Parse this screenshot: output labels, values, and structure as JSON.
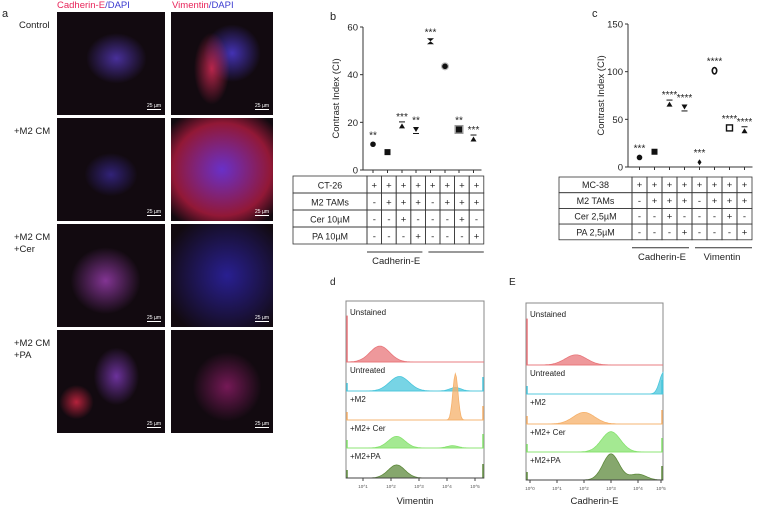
{
  "panel_a": {
    "label": "a",
    "col_headers": [
      {
        "marker": "Cadherin-E",
        "sep": "/",
        "stain": "DAPI"
      },
      {
        "marker": "Vimentin",
        "sep": "/",
        "stain": "DAPI"
      }
    ],
    "rows": [
      {
        "label_lines": [
          "Control"
        ]
      },
      {
        "label_lines": [
          "+M2 CM"
        ]
      },
      {
        "label_lines": [
          "+M2 CM",
          "+Cer"
        ]
      },
      {
        "label_lines": [
          "+M2 CM",
          "+PA"
        ]
      }
    ],
    "scale_bar": "25 µm",
    "colors": {
      "marker": "#e8245a",
      "dapi": "#3a3ad0"
    }
  },
  "chart_data": [
    {
      "panel": "b",
      "type": "scatter",
      "ylabel": "Contrast Index (CI)",
      "ylim": [
        0,
        60
      ],
      "yticks": [
        0,
        20,
        40,
        60
      ],
      "values": [
        10.8,
        7.5,
        18.5,
        17,
        54,
        43.5,
        17,
        13
      ],
      "significance": [
        "**",
        "",
        "***",
        "**",
        "***",
        "",
        "**",
        "***"
      ],
      "markers": [
        "circle",
        "square",
        "triangle",
        "triangle-down",
        "hourglass",
        "circle-gray",
        "square-gray",
        "triangle"
      ],
      "table": {
        "rows": [
          {
            "label": "CT-26",
            "cells": [
              "+",
              "+",
              "+",
              "+",
              "+",
              "+",
              "+",
              "+"
            ]
          },
          {
            "label": "M2 TAMs",
            "cells": [
              "-",
              "+",
              "+",
              "+",
              "-",
              "+",
              "+",
              "+"
            ]
          },
          {
            "label": "Cer 10µM",
            "cells": [
              "-",
              "-",
              "+",
              "-",
              "-",
              "-",
              "+",
              "-"
            ]
          },
          {
            "label": "PA 10µM",
            "cells": [
              "-",
              "-",
              "-",
              "+",
              "-",
              "-",
              "-",
              "+"
            ]
          }
        ]
      },
      "groups": [
        "Cadherin-E",
        ""
      ]
    },
    {
      "panel": "c",
      "type": "scatter",
      "ylabel": "Contrast Index (CI)",
      "ylim": [
        0,
        150
      ],
      "yticks": [
        0,
        50,
        100,
        150
      ],
      "values": [
        10,
        16,
        66,
        63,
        5,
        101,
        41,
        38
      ],
      "significance": [
        "***",
        "",
        "****",
        "****",
        "***",
        "****",
        "****",
        "****"
      ],
      "markers": [
        "circle",
        "square",
        "triangle",
        "triangle-down",
        "diamond",
        "circle-open",
        "square-open",
        "triangle"
      ],
      "table": {
        "rows": [
          {
            "label": "MC-38",
            "cells": [
              "+",
              "+",
              "+",
              "+",
              "+",
              "+",
              "+",
              "+"
            ]
          },
          {
            "label": "M2 TAMs",
            "cells": [
              "-",
              "+",
              "+",
              "+",
              "-",
              "+",
              "+",
              "+"
            ]
          },
          {
            "label": "Cer 2,5µM",
            "cells": [
              "-",
              "-",
              "+",
              "-",
              "-",
              "-",
              "+",
              "-"
            ]
          },
          {
            "label": "PA 2,5µM",
            "cells": [
              "-",
              "-",
              "-",
              "+",
              "-",
              "-",
              "-",
              "+"
            ]
          }
        ]
      },
      "groups": [
        "Cadherin-E",
        "Vimentin"
      ]
    },
    {
      "panel": "d",
      "type": "area",
      "xlabel": "Vimentin",
      "xscale": "log",
      "xticks": [
        "10^1",
        "10^2",
        "10^3",
        "10^4",
        "10^5"
      ],
      "series": [
        {
          "name": "Unstained",
          "color": "#e8767a",
          "peaks": [
            {
              "log10": 1.6,
              "rel": 0.55,
              "sd": 0.35
            }
          ]
        },
        {
          "name": "Untreated",
          "color": "#4ac6dc",
          "peaks": [
            {
              "log10": 2.3,
              "rel": 0.5,
              "sd": 0.35
            },
            {
              "log10": 4.3,
              "rel": 0.12,
              "sd": 0.2
            }
          ]
        },
        {
          "name": "+M2",
          "color": "#f5b06a",
          "peaks": [
            {
              "log10": 4.3,
              "rel": 1.6,
              "sd": 0.09
            }
          ]
        },
        {
          "name": "+M2+ Cer",
          "color": "#86e26e",
          "peaks": [
            {
              "log10": 2.2,
              "rel": 0.4,
              "sd": 0.3
            },
            {
              "log10": 4.2,
              "rel": 0.08,
              "sd": 0.2
            }
          ]
        },
        {
          "name": "+M2+PA",
          "color": "#5e8a3c",
          "peaks": [
            {
              "log10": 2.2,
              "rel": 0.45,
              "sd": 0.3
            }
          ]
        }
      ]
    },
    {
      "panel": "E",
      "type": "area",
      "xlabel": "Cadherin-E",
      "xscale": "log",
      "xticks": [
        "10^0",
        "10^1",
        "10^2",
        "10^3",
        "10^4",
        "10^5"
      ],
      "series": [
        {
          "name": "Unstained",
          "color": "#e8767a",
          "peaks": [
            {
              "log10": 1.7,
              "rel": 0.35,
              "sd": 0.4
            }
          ]
        },
        {
          "name": "Untreated",
          "color": "#4ac6dc",
          "peaks": [
            {
              "log10": 4.95,
              "rel": 0.75,
              "sd": 0.15
            }
          ]
        },
        {
          "name": "+M2",
          "color": "#f5b06a",
          "peaks": [
            {
              "log10": 2.0,
              "rel": 0.4,
              "sd": 0.4
            }
          ]
        },
        {
          "name": "+M2+ Cer",
          "color": "#86e26e",
          "peaks": [
            {
              "log10": 3.0,
              "rel": 0.7,
              "sd": 0.35
            }
          ]
        },
        {
          "name": "+M2+PA",
          "color": "#5e8a3c",
          "peaks": [
            {
              "log10": 3.0,
              "rel": 0.9,
              "sd": 0.3
            },
            {
              "log10": 4.0,
              "rel": 0.2,
              "sd": 0.3
            }
          ]
        }
      ]
    }
  ]
}
